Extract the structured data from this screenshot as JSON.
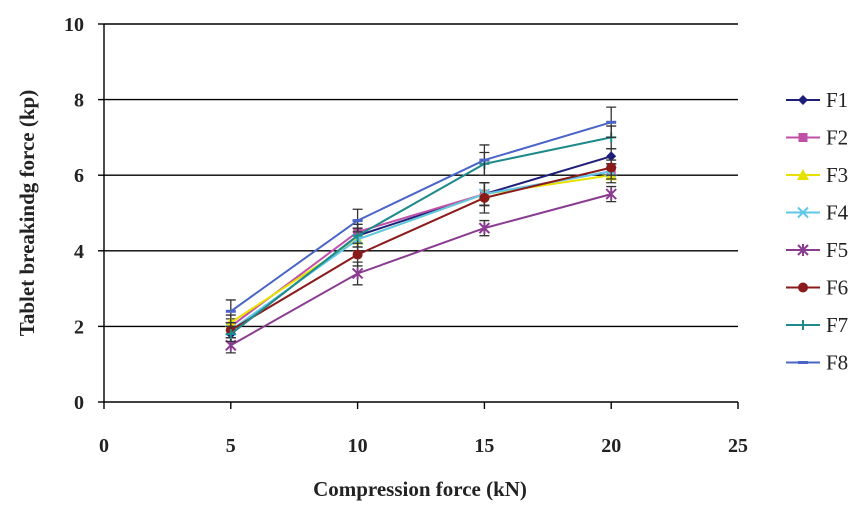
{
  "chart_data": {
    "type": "line",
    "title": "",
    "xlabel": "Compression force (kN)",
    "ylabel": "Tablet breakindg force (kp)",
    "xlim": [
      0,
      25
    ],
    "ylim": [
      0,
      10
    ],
    "xticks": [
      "0",
      "5",
      "10",
      "15",
      "20",
      "25"
    ],
    "yticks": [
      "0",
      "2",
      "4",
      "6",
      "8",
      "10"
    ],
    "grid": "horizontal",
    "legend": "right",
    "x": [
      5,
      10,
      15,
      20
    ],
    "series": [
      {
        "name": "F1",
        "color": "#1f1f7a",
        "marker": "diamond",
        "values": [
          1.8,
          4.4,
          5.5,
          6.5
        ],
        "err": [
          0.2,
          0.3,
          0.3,
          0.2
        ]
      },
      {
        "name": "F2",
        "color": "#c04fa8",
        "marker": "square",
        "values": [
          2.0,
          4.5,
          5.5,
          6.1
        ],
        "err": [
          0.2,
          0.3,
          0.3,
          0.2
        ]
      },
      {
        "name": "F3",
        "color": "#e8e000",
        "marker": "triangle",
        "values": [
          2.1,
          4.3,
          5.5,
          6.0
        ],
        "err": [
          0.2,
          0.3,
          0.3,
          0.2
        ]
      },
      {
        "name": "F4",
        "color": "#5ec8e8",
        "marker": "x",
        "values": [
          1.9,
          4.3,
          5.5,
          6.1
        ],
        "err": [
          0.2,
          0.3,
          0.3,
          0.2
        ]
      },
      {
        "name": "F5",
        "color": "#8a3d90",
        "marker": "star",
        "values": [
          1.5,
          3.4,
          4.6,
          5.5
        ],
        "err": [
          0.2,
          0.3,
          0.2,
          0.2
        ]
      },
      {
        "name": "F6",
        "color": "#8b1a1a",
        "marker": "circle",
        "values": [
          1.9,
          3.9,
          5.4,
          6.2
        ],
        "err": [
          0.2,
          0.3,
          0.4,
          0.2
        ]
      },
      {
        "name": "F7",
        "color": "#1f8a8a",
        "marker": "plus",
        "values": [
          1.8,
          4.4,
          6.3,
          7.0
        ],
        "err": [
          0.2,
          0.3,
          0.3,
          0.3
        ]
      },
      {
        "name": "F8",
        "color": "#4a64c8",
        "marker": "dash",
        "values": [
          2.4,
          4.8,
          6.4,
          7.4
        ],
        "err": [
          0.3,
          0.3,
          0.4,
          0.4
        ]
      }
    ]
  }
}
